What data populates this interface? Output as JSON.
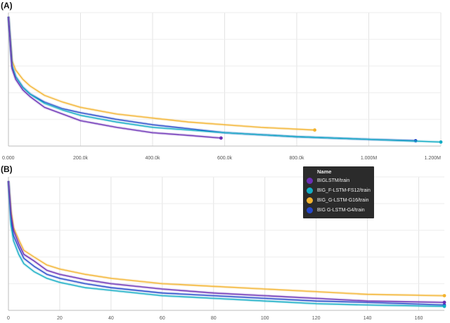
{
  "chart_data": [
    {
      "panel_label": "(A)",
      "type": "line",
      "xlim": [
        0,
        1200000
      ],
      "x_ticks": [
        0,
        200000,
        400000,
        600000,
        800000,
        1000000,
        1200000
      ],
      "x_tick_labels": [
        "0.000",
        "200.0k",
        "400.0k",
        "600.0k",
        "800.0k",
        "1.000M",
        "1.200M"
      ],
      "ylim": [
        0,
        1
      ],
      "grid": true,
      "series": [
        {
          "name": "BIGLSTM/train",
          "color": "#6a2fb4",
          "x": [
            0,
            10000,
            20000,
            40000,
            60000,
            100000,
            150000,
            200000,
            300000,
            400000,
            500000,
            590000
          ],
          "y": [
            0.97,
            0.58,
            0.5,
            0.42,
            0.37,
            0.29,
            0.24,
            0.19,
            0.14,
            0.1,
            0.08,
            0.06
          ]
        },
        {
          "name": "BIG_F-LSTM-FS12/train",
          "color": "#12acc4",
          "x": [
            0,
            10000,
            20000,
            40000,
            60000,
            100000,
            150000,
            200000,
            300000,
            400000,
            600000,
            800000,
            1000000,
            1200000
          ],
          "y": [
            0.97,
            0.6,
            0.52,
            0.44,
            0.39,
            0.32,
            0.27,
            0.23,
            0.18,
            0.14,
            0.1,
            0.07,
            0.05,
            0.03
          ]
        },
        {
          "name": "BIG_G-LSTM-G16/train",
          "color": "#f3b32f",
          "x": [
            0,
            10000,
            20000,
            40000,
            60000,
            100000,
            150000,
            200000,
            300000,
            400000,
            500000,
            600000,
            700000,
            850000
          ],
          "y": [
            0.97,
            0.64,
            0.57,
            0.5,
            0.45,
            0.38,
            0.33,
            0.29,
            0.24,
            0.21,
            0.18,
            0.16,
            0.14,
            0.12
          ]
        },
        {
          "name": "BIG_G-LSTM-G4/train",
          "color": "#2547c9",
          "x": [
            0,
            10000,
            20000,
            40000,
            60000,
            100000,
            150000,
            200000,
            300000,
            400000,
            600000,
            800000,
            1000000,
            1130000
          ],
          "y": [
            0.97,
            0.6,
            0.52,
            0.44,
            0.39,
            0.33,
            0.28,
            0.25,
            0.2,
            0.16,
            0.1,
            0.07,
            0.05,
            0.04
          ]
        }
      ]
    },
    {
      "panel_label": "(B)",
      "type": "line",
      "xlim": [
        0,
        170
      ],
      "x_ticks": [
        0,
        20,
        40,
        60,
        80,
        100,
        120,
        140,
        160
      ],
      "x_tick_labels": [
        "0",
        "20",
        "40",
        "60",
        "80",
        "100",
        "120",
        "140",
        "160"
      ],
      "ylim": [
        0,
        1
      ],
      "grid": true,
      "legend": {
        "position": "top-right",
        "title": "Name"
      },
      "series": [
        {
          "name": "BIGLSTM/train",
          "color": "#6a2fb4",
          "x": [
            0,
            1,
            2,
            4,
            6,
            10,
            15,
            20,
            30,
            40,
            60,
            80,
            100,
            120,
            140,
            170
          ],
          "y": [
            0.97,
            0.72,
            0.6,
            0.5,
            0.42,
            0.37,
            0.3,
            0.27,
            0.23,
            0.2,
            0.16,
            0.13,
            0.11,
            0.09,
            0.07,
            0.06
          ]
        },
        {
          "name": "BIG_F-LSTM-FS12/train",
          "color": "#12acc4",
          "x": [
            0,
            1,
            2,
            4,
            6,
            10,
            15,
            20,
            30,
            40,
            60,
            80,
            100,
            120,
            140,
            170
          ],
          "y": [
            0.97,
            0.64,
            0.52,
            0.42,
            0.35,
            0.29,
            0.24,
            0.21,
            0.17,
            0.15,
            0.11,
            0.09,
            0.07,
            0.05,
            0.04,
            0.03
          ]
        },
        {
          "name": "BIG_G-LSTM-G16/train",
          "color": "#f3b32f",
          "x": [
            0,
            1,
            2,
            4,
            6,
            10,
            15,
            20,
            30,
            40,
            60,
            80,
            100,
            120,
            140,
            170
          ],
          "y": [
            0.97,
            0.75,
            0.62,
            0.53,
            0.45,
            0.4,
            0.34,
            0.31,
            0.27,
            0.24,
            0.2,
            0.18,
            0.16,
            0.14,
            0.12,
            0.11
          ]
        },
        {
          "name": "BIG_G-LSTM-G4/train",
          "color": "#2547c9",
          "x": [
            0,
            1,
            2,
            4,
            6,
            10,
            15,
            20,
            30,
            40,
            60,
            80,
            100,
            120,
            140,
            170
          ],
          "y": [
            0.97,
            0.68,
            0.56,
            0.47,
            0.39,
            0.33,
            0.27,
            0.24,
            0.2,
            0.17,
            0.13,
            0.11,
            0.09,
            0.07,
            0.06,
            0.04
          ]
        }
      ]
    }
  ],
  "legend": {
    "title": "Name",
    "items": [
      {
        "label": "BIGLSTM/train",
        "color": "#6a2fb4"
      },
      {
        "label": "BIG_F-LSTM-FS12/train",
        "color": "#12acc4"
      },
      {
        "label": "BIG_G-LSTM-G16/train",
        "color": "#f3b32f"
      },
      {
        "label": "BIG G-LSTM-G4/train",
        "color": "#2547c9"
      }
    ]
  }
}
